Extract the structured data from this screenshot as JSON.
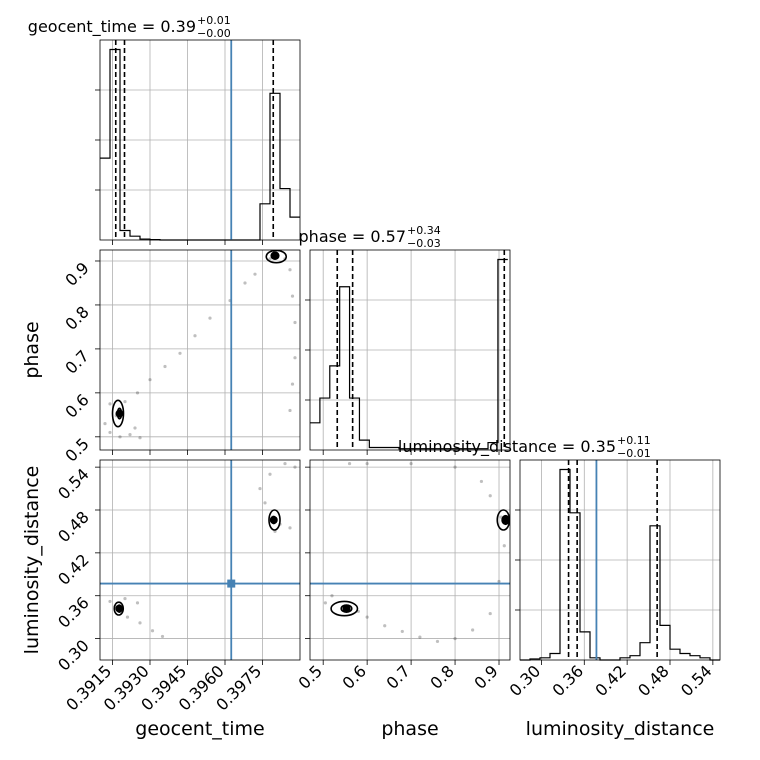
{
  "chart_data": {
    "type": "corner",
    "truth": {
      "geocent_time": 0.39625,
      "phase": null,
      "luminosity_distance": 0.377,
      "color": "#4682b4"
    },
    "parameters": [
      {
        "name": "geocent_time",
        "title_name": "geocent_time = 0.39",
        "title_upper": "+0.01",
        "title_lower": "−0.00",
        "range": [
          0.391,
          0.399
        ],
        "ticks": [
          0.3915,
          0.393,
          0.3945,
          0.396,
          0.3975
        ],
        "tick_labels": [
          "0.3915",
          "0.3930",
          "0.3945",
          "0.3960",
          "0.3975"
        ],
        "quantiles": [
          0.39163,
          0.39198,
          0.39793
        ],
        "hist_edges": [
          0.391,
          0.3914,
          0.3918,
          0.3922,
          0.3926,
          0.393,
          0.3934,
          0.3938,
          0.3942,
          0.3946,
          0.395,
          0.3954,
          0.3958,
          0.3962,
          0.3966,
          0.397,
          0.3974,
          0.3978,
          0.3982,
          0.3986,
          0.399
        ],
        "hist_values": [
          0.43,
          1.0,
          0.05,
          0.02,
          0.005,
          0.002,
          0.0,
          0.0,
          0.0,
          0.0,
          0.0,
          0.0,
          0.0,
          0.0,
          0.0,
          0.0,
          0.19,
          0.77,
          0.27,
          0.12
        ]
      },
      {
        "name": "phase",
        "title_name": "phase = 0.57",
        "title_upper": "+0.34",
        "title_lower": "−0.03",
        "range": [
          0.47,
          0.925
        ],
        "ticks": [
          0.5,
          0.6,
          0.7,
          0.8,
          0.9
        ],
        "tick_labels": [
          "0.5",
          "0.6",
          "0.7",
          "0.8",
          "0.9"
        ],
        "quantiles": [
          0.532,
          0.567,
          0.912
        ],
        "hist_edges": [
          0.47,
          0.4925,
          0.515,
          0.5375,
          0.56,
          0.5825,
          0.605,
          0.6275,
          0.65,
          0.6725,
          0.695,
          0.7175,
          0.74,
          0.7625,
          0.785,
          0.8075,
          0.83,
          0.8525,
          0.875,
          0.8975,
          0.92
        ],
        "hist_values": [
          0.11,
          0.21,
          0.34,
          0.66,
          0.21,
          0.04,
          0.01,
          0.01,
          0.01,
          0.005,
          0.005,
          0.005,
          0.005,
          0.005,
          0.005,
          0.005,
          0.005,
          0.005,
          0.03,
          0.77
        ]
      },
      {
        "name": "luminosity_distance",
        "title_name": "luminosity_distance = 0.35",
        "title_upper": "+0.11",
        "title_lower": "−0.01",
        "range": [
          0.27,
          0.55
        ],
        "ticks": [
          0.3,
          0.36,
          0.42,
          0.48,
          0.54
        ],
        "tick_labels": [
          "0.30",
          "0.36",
          "0.42",
          "0.48",
          "0.54"
        ],
        "quantiles": [
          0.338,
          0.35,
          0.462
        ],
        "hist_edges": [
          0.27,
          0.284,
          0.298,
          0.312,
          0.326,
          0.34,
          0.354,
          0.368,
          0.382,
          0.396,
          0.41,
          0.424,
          0.438,
          0.452,
          0.466,
          0.48,
          0.494,
          0.508,
          0.522,
          0.536,
          0.55
        ],
        "hist_values": [
          0.0,
          0.005,
          0.01,
          0.03,
          0.88,
          0.68,
          0.13,
          0.01,
          0.0,
          0.0,
          0.01,
          0.02,
          0.08,
          0.62,
          0.16,
          0.05,
          0.03,
          0.02,
          0.01,
          0.0
        ]
      }
    ],
    "pairs": [
      {
        "x": "geocent_time",
        "y": "phase",
        "samples": [
          [
            0.39175,
            0.555
          ],
          [
            0.39178,
            0.562
          ],
          [
            0.39165,
            0.548
          ],
          [
            0.39182,
            0.545
          ],
          [
            0.3914,
            0.575
          ],
          [
            0.392,
            0.58
          ],
          [
            0.3925,
            0.6
          ],
          [
            0.393,
            0.63
          ],
          [
            0.3936,
            0.66
          ],
          [
            0.3942,
            0.69
          ],
          [
            0.3948,
            0.73
          ],
          [
            0.3954,
            0.77
          ],
          [
            0.3962,
            0.81
          ],
          [
            0.3968,
            0.85
          ],
          [
            0.3972,
            0.87
          ],
          [
            0.3978,
            0.905
          ],
          [
            0.398,
            0.91
          ],
          [
            0.3984,
            0.905
          ],
          [
            0.3986,
            0.88
          ],
          [
            0.3987,
            0.82
          ],
          [
            0.3988,
            0.76
          ],
          [
            0.3988,
            0.68
          ],
          [
            0.3987,
            0.62
          ],
          [
            0.3986,
            0.56
          ],
          [
            0.3914,
            0.51
          ],
          [
            0.3918,
            0.5
          ],
          [
            0.3922,
            0.505
          ],
          [
            0.3926,
            0.498
          ],
          [
            0.3912,
            0.53
          ],
          [
            0.3924,
            0.52
          ]
        ],
        "contours": [
          {
            "center": [
              0.39178,
              0.553
            ],
            "rx": 8e-05,
            "ry": 0.012
          },
          {
            "center": [
              0.39172,
              0.553
            ],
            "rx": 0.00022,
            "ry": 0.03
          },
          {
            "center": [
              0.398,
              0.912
            ],
            "rx": 0.00015,
            "ry": 0.008
          },
          {
            "center": [
              0.39805,
              0.91
            ],
            "rx": 0.0004,
            "ry": 0.014
          }
        ]
      },
      {
        "x": "geocent_time",
        "y": "luminosity_distance",
        "samples": [
          [
            0.39175,
            0.341
          ],
          [
            0.3918,
            0.338
          ],
          [
            0.3916,
            0.345
          ],
          [
            0.3921,
            0.33
          ],
          [
            0.3926,
            0.322
          ],
          [
            0.3931,
            0.311
          ],
          [
            0.3935,
            0.303
          ],
          [
            0.3914,
            0.352
          ],
          [
            0.392,
            0.356
          ],
          [
            0.3925,
            0.35
          ],
          [
            0.3979,
            0.47
          ],
          [
            0.3976,
            0.49
          ],
          [
            0.3974,
            0.51
          ],
          [
            0.3978,
            0.53
          ],
          [
            0.3984,
            0.545
          ],
          [
            0.3988,
            0.54
          ],
          [
            0.3982,
            0.46
          ],
          [
            0.3986,
            0.455
          ],
          [
            0.398,
            0.45
          ]
        ],
        "contours": [
          {
            "center": [
              0.39177,
              0.342
            ],
            "rx": 8e-05,
            "ry": 0.005
          },
          {
            "center": [
              0.39175,
              0.342
            ],
            "rx": 0.00018,
            "ry": 0.009
          },
          {
            "center": [
              0.39795,
              0.466
            ],
            "rx": 8e-05,
            "ry": 0.005
          },
          {
            "center": [
              0.39798,
              0.466
            ],
            "rx": 0.00022,
            "ry": 0.014
          }
        ]
      },
      {
        "x": "phase",
        "y": "luminosity_distance",
        "samples": [
          [
            0.553,
            0.342
          ],
          [
            0.548,
            0.345
          ],
          [
            0.56,
            0.34
          ],
          [
            0.58,
            0.338
          ],
          [
            0.6,
            0.33
          ],
          [
            0.64,
            0.318
          ],
          [
            0.68,
            0.31
          ],
          [
            0.72,
            0.302
          ],
          [
            0.76,
            0.296
          ],
          [
            0.8,
            0.3
          ],
          [
            0.84,
            0.312
          ],
          [
            0.88,
            0.335
          ],
          [
            0.9,
            0.38
          ],
          [
            0.912,
            0.43
          ],
          [
            0.905,
            0.47
          ],
          [
            0.88,
            0.5
          ],
          [
            0.86,
            0.52
          ],
          [
            0.8,
            0.54
          ],
          [
            0.7,
            0.545
          ],
          [
            0.6,
            0.545
          ],
          [
            0.56,
            0.545
          ],
          [
            0.505,
            0.35
          ],
          [
            0.52,
            0.36
          ]
        ],
        "contours": [
          {
            "center": [
              0.553,
              0.342
            ],
            "rx": 0.012,
            "ry": 0.005
          },
          {
            "center": [
              0.548,
              0.342
            ],
            "rx": 0.03,
            "ry": 0.01
          },
          {
            "center": [
              0.915,
              0.466
            ],
            "rx": 0.008,
            "ry": 0.006
          },
          {
            "center": [
              0.91,
              0.466
            ],
            "rx": 0.014,
            "ry": 0.014
          }
        ]
      }
    ]
  }
}
